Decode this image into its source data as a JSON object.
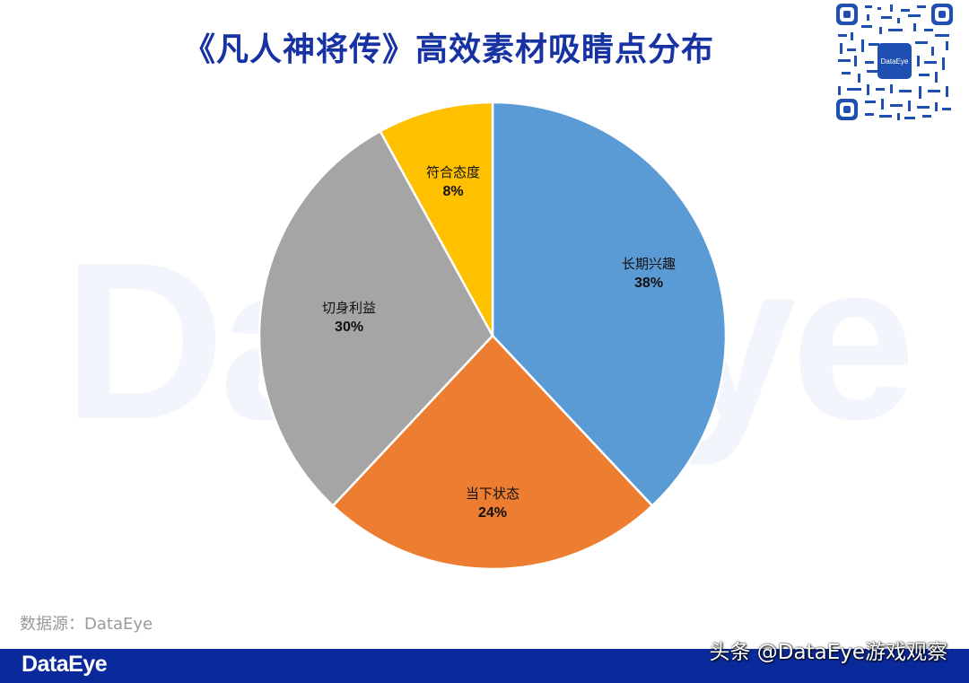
{
  "title": "《凡人神将传》高效素材吸睛点分布",
  "watermark": "DataEye",
  "qr_code": {
    "center_label": "DataEye"
  },
  "chart_data": {
    "type": "pie",
    "title": "《凡人神将传》高效素材吸睛点分布",
    "categories": [
      "长期兴趣",
      "当下状态",
      "切身利益",
      "符合态度"
    ],
    "values": [
      38,
      24,
      30,
      8
    ],
    "labels": [
      "38%",
      "24%",
      "30%",
      "8%"
    ],
    "colors": [
      "#5b9bd5",
      "#ed7d31",
      "#a5a5a5",
      "#ffc000"
    ],
    "start_angle": "12 o'clock, clockwise",
    "legend": "none (data labels inside slices)"
  },
  "slices": [
    {
      "name": "长期兴趣",
      "pct": "38%"
    },
    {
      "name": "当下状态",
      "pct": "24%"
    },
    {
      "name": "切身利益",
      "pct": "30%"
    },
    {
      "name": "符合态度",
      "pct": "8%"
    }
  ],
  "source": "数据源：DataEye",
  "footer": {
    "logo": "DataEye",
    "credit": "头条 @DataEye游戏观察"
  }
}
